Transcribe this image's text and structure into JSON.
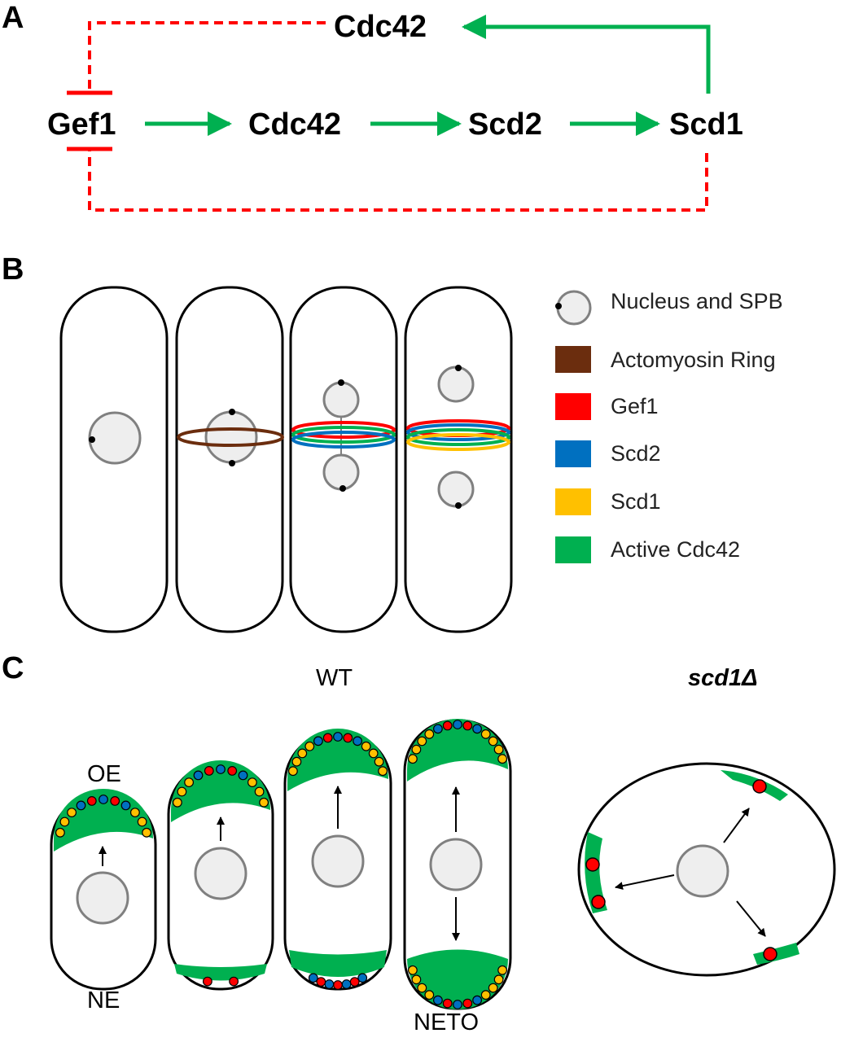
{
  "panels": {
    "a": {
      "letter": "A",
      "nodes": {
        "top_cdc42": "Cdc42",
        "gef1": "Gef1",
        "cdc42": "Cdc42",
        "scd2": "Scd2",
        "scd1": "Scd1"
      }
    },
    "b": {
      "letter": "B",
      "legend": [
        {
          "label": "Nucleus and SPB",
          "icon": "nucleus-icon",
          "color": "#eeeeee"
        },
        {
          "label": "Actomyosin Ring",
          "icon": "swatch",
          "color": "#6b2d0e"
        },
        {
          "label": "Gef1",
          "icon": "swatch",
          "color": "#ff0000"
        },
        {
          "label": "Scd2",
          "icon": "swatch",
          "color": "#0070c0"
        },
        {
          "label": "Scd1",
          "icon": "swatch",
          "color": "#ffc000"
        },
        {
          "label": "Active Cdc42",
          "icon": "swatch",
          "color": "#00b050"
        }
      ]
    },
    "c": {
      "letter": "C",
      "wt_label": "WT",
      "mutant_label": "scd1Δ",
      "oe_label": "OE",
      "ne_label": "NE",
      "neto_label": "NETO"
    }
  },
  "colors": {
    "activation_arrow": "#00b050",
    "inhibition": "#ff0000",
    "gef1": "#ff0000",
    "scd2": "#0070c0",
    "scd1": "#ffc000",
    "active_cdc42": "#00b050",
    "actomyosin": "#6b2d0e",
    "nucleus_fill": "#eeeeee",
    "nucleus_stroke": "#808080"
  }
}
